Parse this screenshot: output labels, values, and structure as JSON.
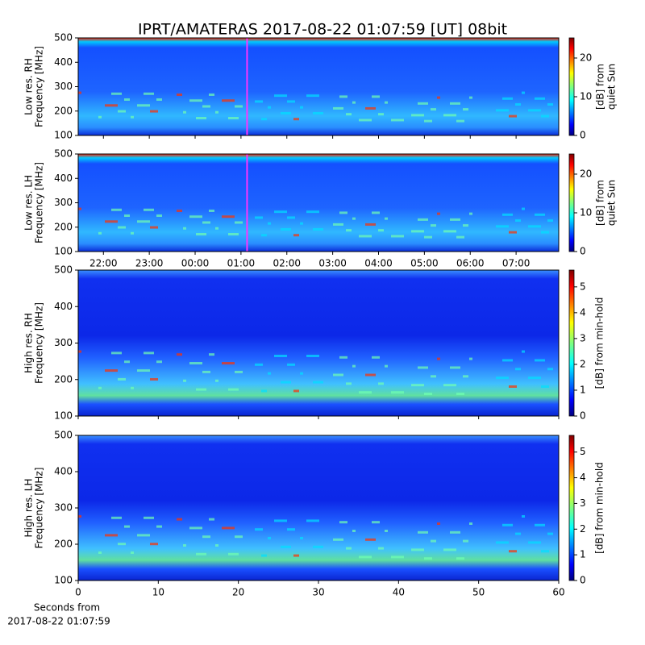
{
  "chart_data": [
    {
      "type": "heatmap",
      "title": "IPRT/AMATERAS 2017-08-22 01:07:59 [UT]   08bit",
      "ylabel": [
        "Low res. RH",
        "Frequency [MHz]"
      ],
      "colorbar_label": [
        "[dB] from",
        "quiet Sun"
      ],
      "xlim": [
        21.45,
        31.93
      ],
      "ylim": [
        100,
        500
      ],
      "yticks": [
        100,
        200,
        300,
        400,
        500
      ],
      "clim": [
        0,
        25.2
      ],
      "cticks": [
        0,
        10,
        20
      ],
      "marker_x": 25.133,
      "marker_color": "#ff33ff"
    },
    {
      "type": "heatmap",
      "ylabel": [
        "Low res. LH",
        "Frequency [MHz]"
      ],
      "colorbar_label": [
        "[dB] from",
        "quiet Sun"
      ],
      "xlim": [
        21.45,
        31.93
      ],
      "xticks": [
        {
          "value": 22,
          "label": "22:00"
        },
        {
          "value": 23,
          "label": "23:00"
        },
        {
          "value": 24,
          "label": "00:00"
        },
        {
          "value": 25,
          "label": "01:00"
        },
        {
          "value": 26,
          "label": "02:00"
        },
        {
          "value": 27,
          "label": "03:00"
        },
        {
          "value": 28,
          "label": "04:00"
        },
        {
          "value": 29,
          "label": "05:00"
        },
        {
          "value": 30,
          "label": "06:00"
        },
        {
          "value": 31,
          "label": "07:00"
        }
      ],
      "ylim": [
        100,
        500
      ],
      "yticks": [
        100,
        200,
        300,
        400,
        500
      ],
      "clim": [
        0,
        25.2
      ],
      "cticks": [
        0,
        10,
        20
      ],
      "marker_x": 25.133,
      "marker_color": "#ff33ff"
    },
    {
      "type": "heatmap",
      "ylabel": [
        "High res. RH",
        "Frequency [MHz]"
      ],
      "colorbar_label": [
        "[dB] from min-hold"
      ],
      "xlim": [
        0,
        60
      ],
      "ylim": [
        100,
        500
      ],
      "yticks": [
        100,
        200,
        300,
        400,
        500
      ],
      "clim": [
        0,
        5.65
      ],
      "cticks": [
        0,
        1,
        2,
        3,
        4,
        5
      ]
    },
    {
      "type": "heatmap",
      "ylabel": [
        "High res. LH",
        "Frequency [MHz]"
      ],
      "colorbar_label": [
        "[dB] from min-hold"
      ],
      "xlabel": [
        "Seconds from",
        "2017-08-22 01:07:59"
      ],
      "xlim": [
        0,
        60
      ],
      "xticks": [
        0,
        10,
        20,
        30,
        40,
        50,
        60
      ],
      "ylim": [
        100,
        500
      ],
      "yticks": [
        100,
        200,
        300,
        400,
        500
      ],
      "clim": [
        0,
        5.65
      ],
      "cticks": [
        0,
        1,
        2,
        3,
        4,
        5
      ]
    }
  ]
}
